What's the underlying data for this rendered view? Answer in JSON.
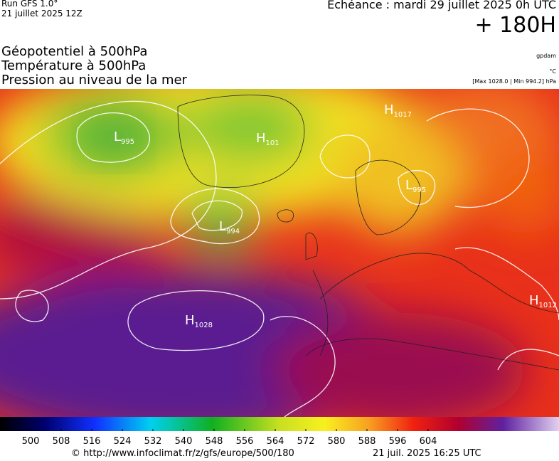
{
  "header": {
    "run": "Run GFS 1.0°",
    "run_date": "21 juillet 2025 12Z",
    "valid": "Echéance : mardi 29 juillet 2025 0h UTC",
    "lead": "+ 180H"
  },
  "fields": [
    "Géopotentiel à 500hPa",
    "Température à 500hPa",
    "Pression au niveau de la mer"
  ],
  "units": {
    "geopotential": "gpdam",
    "temperature": "°C",
    "pressure": "[Max 1028.0 | Min 994.2] hPa"
  },
  "centers": [
    {
      "letter": "L",
      "value": "995"
    },
    {
      "letter": "H",
      "value": "101"
    },
    {
      "letter": "H",
      "value": "1017"
    },
    {
      "letter": "L",
      "value": "994"
    },
    {
      "letter": "L",
      "value": "995"
    },
    {
      "letter": "H",
      "value": "1028"
    },
    {
      "letter": "H",
      "value": "1012"
    }
  ],
  "colorbar": {
    "ticks": [
      500,
      508,
      516,
      524,
      532,
      540,
      548,
      556,
      564,
      572,
      580,
      588,
      596,
      604
    ]
  },
  "footer": {
    "source": "© http://www.infoclimat.fr/z/gfs/europe/500/180",
    "generated": "21 juil. 2025 16:25 UTC"
  }
}
